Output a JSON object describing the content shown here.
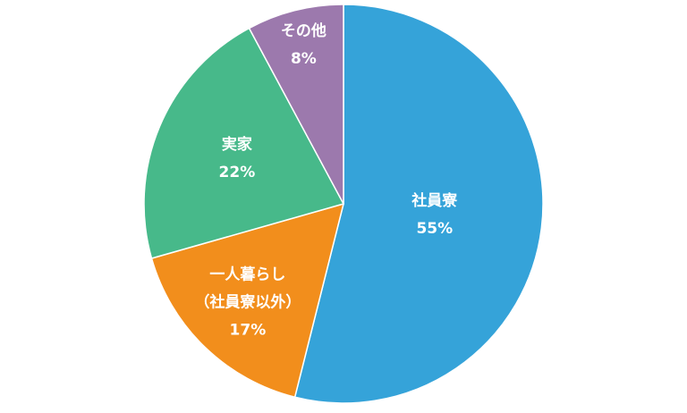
{
  "chart_data": {
    "type": "pie",
    "categories": [
      "社員寮",
      "一人暮らし\n（社員寮以外）",
      "実家",
      "その他"
    ],
    "values": [
      55,
      17,
      22,
      8
    ],
    "value_labels": [
      "55%",
      "17%",
      "22%",
      "8%"
    ],
    "colors": [
      "#35a3d9",
      "#f28e1c",
      "#47b98a",
      "#9c79ad"
    ]
  }
}
